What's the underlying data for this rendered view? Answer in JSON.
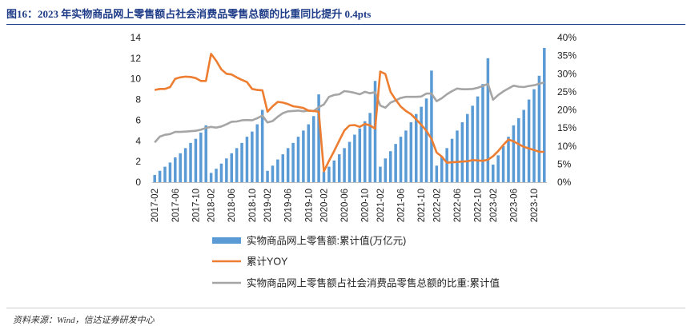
{
  "figure": {
    "title": "图16：2023 年实物商品网上零售额占社会消费品零售总额的比重同比提升 0.4pts",
    "source": "资料来源：Wind，信达证券研发中心"
  },
  "colors": {
    "title": "#1f3c88",
    "bars": "#5b9bd5",
    "yoy": "#ed7d31",
    "share": "#a5a5a5"
  },
  "chart_data": {
    "type": "bar+line",
    "x": [
      "2017-02",
      "2017-03",
      "2017-04",
      "2017-05",
      "2017-06",
      "2017-07",
      "2017-08",
      "2017-09",
      "2017-10",
      "2017-11",
      "2017-12",
      "2018-02",
      "2018-03",
      "2018-04",
      "2018-05",
      "2018-06",
      "2018-07",
      "2018-08",
      "2018-09",
      "2018-10",
      "2018-11",
      "2018-12",
      "2019-02",
      "2019-03",
      "2019-04",
      "2019-05",
      "2019-06",
      "2019-07",
      "2019-08",
      "2019-09",
      "2019-10",
      "2019-11",
      "2019-12",
      "2020-02",
      "2020-03",
      "2020-04",
      "2020-05",
      "2020-06",
      "2020-07",
      "2020-08",
      "2020-09",
      "2020-10",
      "2020-11",
      "2020-12",
      "2021-02",
      "2021-03",
      "2021-04",
      "2021-05",
      "2021-06",
      "2021-07",
      "2021-08",
      "2021-09",
      "2021-10",
      "2021-11",
      "2021-12",
      "2022-02",
      "2022-03",
      "2022-04",
      "2022-05",
      "2022-06",
      "2022-07",
      "2022-08",
      "2022-09",
      "2022-10",
      "2022-11",
      "2022-12",
      "2023-02",
      "2023-03",
      "2023-04",
      "2023-05",
      "2023-06",
      "2023-07",
      "2023-08",
      "2023-09",
      "2023-10",
      "2023-11",
      "2023-12"
    ],
    "x_tick_labels": [
      "2017-02",
      "2017-06",
      "2017-10",
      "2018-02",
      "2018-06",
      "2018-10",
      "2019-02",
      "2019-06",
      "2019-10",
      "2020-02",
      "2020-06",
      "2020-10",
      "2021-02",
      "2021-06",
      "2021-10",
      "2022-02",
      "2022-06",
      "2022-10",
      "2023-02",
      "2023-06",
      "2023-10"
    ],
    "y_left": {
      "min": 0,
      "max": 14,
      "ticks": [
        "0",
        "2",
        "4",
        "6",
        "8",
        "10",
        "12",
        "14"
      ]
    },
    "y_right": {
      "min": 0,
      "max": 40,
      "ticks": [
        "0%",
        "5%",
        "10%",
        "15%",
        "20%",
        "25%",
        "30%",
        "35%",
        "40%"
      ]
    },
    "series": [
      {
        "name": "实物商品网上零售额:累计值(万亿元)",
        "type": "bar",
        "axis": "left",
        "values": [
          0.7,
          1.1,
          1.5,
          1.9,
          2.4,
          2.8,
          3.3,
          3.8,
          4.2,
          4.8,
          5.5,
          0.9,
          1.3,
          1.8,
          2.3,
          2.8,
          3.3,
          3.8,
          4.4,
          4.9,
          5.6,
          7.0,
          1.1,
          1.6,
          2.2,
          2.7,
          3.3,
          3.8,
          4.4,
          5.0,
          5.6,
          6.4,
          8.5,
          1.0,
          1.5,
          2.1,
          2.7,
          3.3,
          3.9,
          4.6,
          5.2,
          5.9,
          6.7,
          9.8,
          1.5,
          2.3,
          3.0,
          3.7,
          4.4,
          5.0,
          5.8,
          6.6,
          7.3,
          8.1,
          10.8,
          1.6,
          2.5,
          3.3,
          4.2,
          5.0,
          5.8,
          6.6,
          7.4,
          8.3,
          9.5,
          12.0,
          1.7,
          2.6,
          3.5,
          4.4,
          5.5,
          6.2,
          7.0,
          8.0,
          9.0,
          10.3,
          13.0
        ]
      },
      {
        "name": "累计YOY",
        "type": "line",
        "axis": "right",
        "values": [
          25.5,
          25.8,
          25.8,
          26.3,
          28.6,
          29.0,
          29.2,
          29.1,
          28.8,
          28.0,
          28.0,
          35.5,
          33.6,
          31.2,
          30.0,
          29.8,
          29.0,
          28.3,
          27.7,
          25.8,
          25.5,
          25.4,
          19.5,
          21.0,
          22.2,
          22.0,
          21.6,
          21.0,
          20.8,
          20.5,
          19.8,
          19.7,
          19.5,
          3.0,
          5.9,
          8.6,
          11.5,
          14.3,
          15.7,
          15.8,
          15.3,
          16.1,
          15.7,
          14.8,
          30.6,
          29.9,
          25.0,
          22.8,
          20.9,
          19.7,
          18.8,
          17.4,
          15.9,
          14.2,
          12.0,
          8.2,
          7.1,
          5.4,
          5.5,
          5.6,
          5.7,
          5.8,
          6.1,
          6.0,
          5.9,
          6.2,
          7.2,
          8.6,
          10.3,
          11.8,
          11.3,
          10.5,
          9.8,
          9.3,
          8.9,
          8.4,
          8.4
        ]
      },
      {
        "name": "实物商品网上零售额占社会消费品零售总额的比重:累计值",
        "type": "line",
        "axis": "right",
        "values": [
          11.0,
          12.6,
          13.1,
          13.3,
          13.9,
          13.9,
          14.0,
          14.1,
          14.2,
          14.5,
          15.0,
          15.3,
          15.1,
          15.4,
          16.0,
          16.7,
          16.8,
          17.1,
          17.2,
          17.1,
          17.7,
          18.4,
          16.5,
          16.9,
          18.1,
          19.1,
          19.6,
          19.7,
          19.8,
          19.6,
          19.8,
          19.7,
          20.7,
          21.5,
          23.6,
          24.1,
          24.3,
          25.2,
          25.0,
          24.7,
          24.3,
          25.0,
          24.6,
          24.9,
          21.2,
          20.6,
          22.0,
          22.6,
          23.3,
          23.6,
          23.6,
          23.6,
          23.7,
          24.5,
          24.5,
          22.4,
          23.2,
          24.3,
          25.2,
          25.9,
          25.7,
          25.7,
          25.8,
          26.1,
          26.6,
          27.2,
          22.8,
          24.1,
          25.1,
          25.9,
          26.7,
          26.4,
          26.3,
          26.6,
          26.8,
          27.2,
          27.6
        ]
      }
    ],
    "legend": {
      "position": "bottom"
    }
  }
}
